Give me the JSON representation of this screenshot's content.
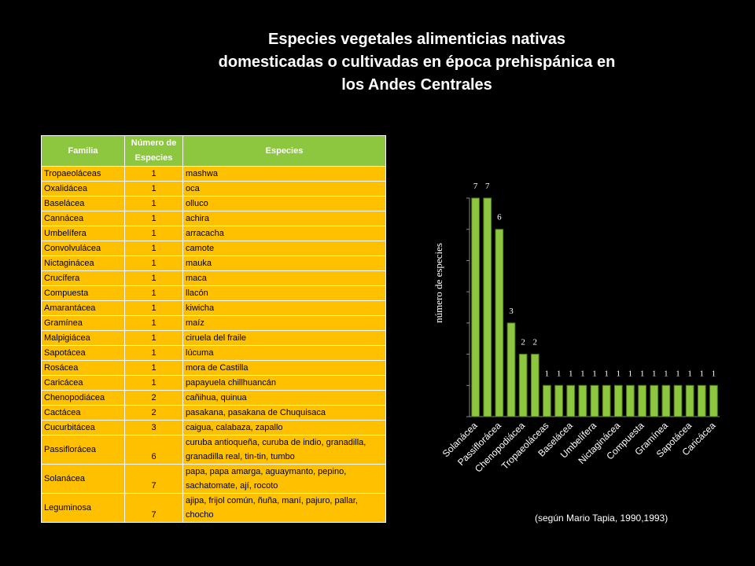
{
  "title": [
    "Especies vegetales alimenticias nativas",
    "domesticadas o cultivadas en época prehispánica en",
    "los Andes Centrales"
  ],
  "table": {
    "header": [
      "Familia",
      "Número de Especies",
      "Especies"
    ],
    "rows": [
      [
        "Tropaeoláceas",
        1,
        "mashwa"
      ],
      [
        "Oxalidácea",
        1,
        "oca"
      ],
      [
        "Baselácea",
        1,
        "olluco"
      ],
      [
        "Cannácea",
        1,
        "achira"
      ],
      [
        "Umbelífera",
        1,
        "arracacha"
      ],
      [
        "Convolvulácea",
        1,
        "camote"
      ],
      [
        "Nictaginácea",
        1,
        "mauka"
      ],
      [
        "Crucífera",
        1,
        "maca"
      ],
      [
        "Compuesta",
        1,
        "llacón"
      ],
      [
        "Amarantácea",
        1,
        "kiwicha"
      ],
      [
        "Gramínea",
        1,
        "maíz"
      ],
      [
        "Malpigiácea",
        1,
        "ciruela del fraile"
      ],
      [
        "Sapotácea",
        1,
        "lúcuma"
      ],
      [
        "Rosácea",
        1,
        "mora de Castilla"
      ],
      [
        "Caricácea",
        1,
        "papayuela chillhuancán"
      ],
      [
        "Chenopodiácea",
        2,
        "cañihua, quinua"
      ],
      [
        "Cactácea",
        2,
        "pasakana, pasakana de Chuquisaca"
      ],
      [
        "Cucurbitácea",
        3,
        "caigua, calabaza, zapallo"
      ],
      [
        "Passiflorácea",
        6,
        "curuba antioqueña, curuba de indio, granadilla, granadilla real, tin-tin, tumbo"
      ],
      [
        "Solanácea",
        7,
        "papa, papa amarga, aguaymanto, pepino, sachatomate, ají, rocoto"
      ],
      [
        "Leguminosa",
        7,
        "ajipa, frijol común, ñuña, maní, pajuro, pallar, chocho"
      ]
    ]
  },
  "chart_data": {
    "type": "bar",
    "y_label": "número de especies",
    "color": "#8dc63f",
    "categories": [
      "Solanácea",
      null,
      "Passiflorácea",
      null,
      "Chenopodiácea",
      null,
      "Tropaeoláceas",
      null,
      "Baselácea",
      null,
      "Umbelífera",
      null,
      "Nictaginácea",
      null,
      "Compuesta",
      null,
      "Gramínea",
      null,
      "Sapotácea",
      null,
      "Caricácea"
    ],
    "values": [
      7,
      7,
      6,
      3,
      2,
      2,
      1,
      1,
      1,
      1,
      1,
      1,
      1,
      1,
      1,
      1,
      1,
      1,
      1,
      1,
      1
    ],
    "ylim": [
      0,
      7
    ],
    "yticks": [
      0,
      1,
      2,
      3,
      4,
      5,
      6,
      7
    ]
  },
  "note": "(según Mario Tapia, 1990,1993)"
}
